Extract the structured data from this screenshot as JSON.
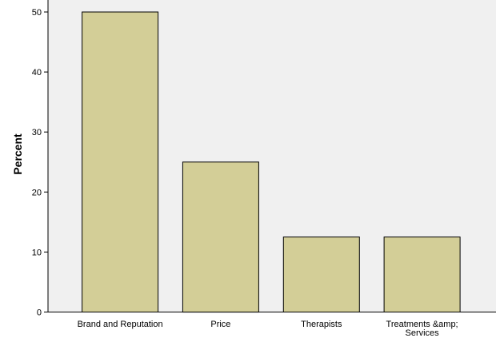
{
  "chart_data": {
    "type": "bar",
    "categories": [
      "Brand and Reputation",
      "Price",
      "Therapists",
      "Treatments &amp; Services"
    ],
    "values": [
      50,
      25,
      12.5,
      12.5
    ],
    "title": "",
    "xlabel": "",
    "ylabel": "Percent",
    "ylim": [
      0,
      52
    ],
    "yticks": [
      0,
      10,
      20,
      30,
      40,
      50
    ],
    "grid": false,
    "legend": "none",
    "colors": {
      "bar_fill": "#d3ce97",
      "bar_stroke": "#000000",
      "plot_background": "#f0f0f0",
      "axis": "#000000"
    }
  }
}
